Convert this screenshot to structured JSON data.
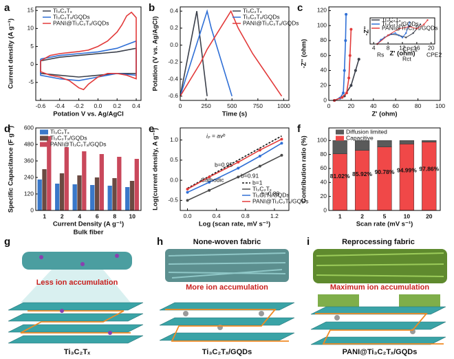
{
  "chart_data": [
    {
      "type": "line",
      "panel": "a",
      "xlabel": "Potation V vs. Ag/AgCl",
      "ylabel": "Current density (A g⁻¹)",
      "xlim": [
        -0.65,
        0.45
      ],
      "xticks": [
        -0.6,
        -0.4,
        -0.2,
        {
          "value": 0,
          "label": "0.0"
        },
        0.2,
        0.4
      ],
      "ylim": [
        -10,
        16
      ],
      "yticks": [
        -5,
        0,
        5,
        10,
        15
      ],
      "series": [
        {
          "name": "Ti₃C₂Tₓ",
          "color": "#3a3f4a",
          "x": [
            -0.6,
            -0.4,
            -0.2,
            0,
            0.2,
            0.4,
            0.4,
            0.2,
            0,
            -0.2,
            -0.4,
            -0.6,
            -0.6
          ],
          "values": [
            1,
            2,
            2.5,
            3,
            3.5,
            4.5,
            -2.5,
            -2.5,
            -3,
            -3.5,
            -3,
            -2.5,
            1
          ]
        },
        {
          "name": "Ti₃C₂Tₓ/GQDs",
          "color": "#2f6fd6",
          "x": [
            -0.6,
            -0.4,
            -0.2,
            0,
            0.2,
            0.3,
            0.4,
            0.4,
            0.2,
            0,
            -0.2,
            -0.4,
            -0.6,
            -0.6
          ],
          "values": [
            1.5,
            2.5,
            3,
            3.5,
            4.5,
            5.5,
            6.5,
            -3,
            -2.5,
            -3.5,
            -4.5,
            -4,
            -3,
            1.5
          ]
        },
        {
          "name": "PANI@Ti₃C₂Tₓ/GQDs",
          "color": "#e23a3a",
          "x": [
            -0.6,
            -0.5,
            -0.4,
            -0.3,
            -0.2,
            -0.1,
            0,
            0.1,
            0.2,
            0.25,
            0.3,
            0.35,
            0.4,
            0.4,
            0.35,
            0.3,
            0.2,
            0.1,
            0,
            -0.1,
            -0.15,
            -0.2,
            -0.3,
            -0.4,
            -0.5,
            -0.6,
            -0.6
          ],
          "values": [
            1,
            2.5,
            3,
            3.3,
            3.6,
            4,
            5,
            6.5,
            9,
            11,
            13.5,
            14.5,
            13,
            -4,
            -3.5,
            -3,
            -2.5,
            -2.5,
            -3.5,
            -5.5,
            -7,
            -6.5,
            -4.5,
            -3.5,
            -3,
            -2,
            1
          ]
        }
      ]
    },
    {
      "type": "line",
      "panel": "b",
      "xlabel": "Time (s)",
      "ylabel": "Potation (V vs. Ag/AgCl)",
      "xlim": [
        0,
        1050
      ],
      "xticks": [
        0,
        250,
        500,
        750,
        1000
      ],
      "ylim": [
        -0.65,
        0.45
      ],
      "yticks": [
        -0.6,
        -0.4,
        -0.2,
        {
          "value": 0,
          "label": "0.0"
        },
        0.2,
        0.4
      ],
      "series": [
        {
          "name": "Ti₃C₂Tₓ",
          "color": "#3a3f4a",
          "x": [
            0,
            160,
            260
          ],
          "values": [
            -0.6,
            0.4,
            -0.6
          ]
        },
        {
          "name": "Ti₃C₂Tₓ/GQDs",
          "color": "#2f6fd6",
          "x": [
            0,
            260,
            300,
            500
          ],
          "values": [
            -0.6,
            0.4,
            0.2,
            -0.6
          ]
        },
        {
          "name": "PANI@Ti₃C₂Tₓ/GQDs",
          "color": "#e23a3a",
          "x": [
            0,
            200,
            260,
            490,
            560,
            700,
            980
          ],
          "values": [
            -0.6,
            -0.2,
            -0.05,
            0.4,
            0.2,
            -0.1,
            -0.6
          ]
        }
      ]
    },
    {
      "type": "line",
      "panel": "c",
      "xlabel": "Z' (ohm)",
      "ylabel": "-Z'' (ohm)",
      "xlim": [
        0,
        100
      ],
      "xticks": [
        0,
        20,
        40,
        60,
        80,
        100
      ],
      "ylim": [
        0,
        125
      ],
      "yticks": [
        0,
        20,
        40,
        60,
        80,
        100,
        120
      ],
      "series": [
        {
          "color": "#3a3f4a",
          "marker": "circle",
          "x": [
            5,
            14,
            20,
            24,
            27
          ],
          "values": [
            0,
            6,
            20,
            40,
            55
          ]
        },
        {
          "color": "#2f6fd6",
          "marker": "circle",
          "x": [
            5,
            10,
            13,
            14,
            15,
            15.5
          ],
          "values": [
            0,
            3,
            10,
            40,
            80,
            115
          ]
        },
        {
          "color": "#e23a3a",
          "marker": "circle",
          "x": [
            5,
            12,
            16,
            18,
            19,
            20
          ],
          "values": [
            0,
            4,
            10,
            30,
            60,
            95
          ]
        }
      ]
    },
    {
      "type": "bar",
      "panel": "d",
      "xlabel": "Current Density (A g⁻¹)",
      "ylabel": "Specific Capacitance (F g⁻¹)",
      "note": "Bulk fiber",
      "categories": [
        "1",
        "2",
        "4",
        "6",
        "8",
        "10"
      ],
      "ylim": [
        0,
        600
      ],
      "yticks": [
        0,
        120,
        240,
        360,
        480,
        600
      ],
      "series": [
        {
          "name": "Ti₃C₂Tₓ",
          "color": "#3a78c9",
          "values": [
            225,
            195,
            190,
            185,
            180,
            170
          ]
        },
        {
          "name": "Ti₃C₂Tₓ/GQDs",
          "color": "#6b4a42",
          "values": [
            300,
            270,
            255,
            240,
            235,
            215
          ]
        },
        {
          "name": "PANI@Ti₃C₂Tₓ/GQDs",
          "color": "#c9485b",
          "values": [
            540,
            460,
            430,
            410,
            390,
            375
          ]
        }
      ]
    },
    {
      "type": "line",
      "panel": "e",
      "xlabel": "Log (scan rate, mV s⁻¹)",
      "ylabel": "Log(current density, A g⁻¹)",
      "xlim": [
        -0.1,
        1.4
      ],
      "xticks": [
        {
          "value": 0,
          "label": "0.0"
        },
        0.4,
        0.8,
        1.2
      ],
      "ylim": [
        -0.75,
        1.3
      ],
      "yticks": [
        -0.5,
        {
          "value": 0,
          "label": "0.0"
        },
        0.5,
        {
          "value": 1,
          "label": "1.0"
        }
      ],
      "annotations": [
        "iₚ = avᵇ",
        "b=0.95",
        "Cathodic",
        "b=0.91",
        "b=0.88"
      ],
      "series": [
        {
          "name": "b=1",
          "color": "#111111",
          "dashed": true,
          "x": [
            0,
            1.3
          ],
          "values": [
            -0.2,
            1.1
          ]
        },
        {
          "name": "Ti₃C₂Tₓ",
          "color": "#4a4a4a",
          "marker": "circle",
          "x": [
            0,
            0.3,
            0.7,
            1.0,
            1.3
          ],
          "values": [
            -0.5,
            -0.25,
            0.08,
            0.35,
            0.62
          ]
        },
        {
          "name": "Ti₃C₂Tₓ/GQDs",
          "color": "#2f6fd6",
          "marker": "circle",
          "x": [
            0,
            0.3,
            0.7,
            1.0,
            1.3
          ],
          "values": [
            -0.3,
            -0.05,
            0.3,
            0.6,
            0.92
          ]
        },
        {
          "name": "PANI@Ti₃C₂Tₓ/GQDs",
          "color": "#e23a3a",
          "marker": "circle",
          "x": [
            0,
            0.3,
            0.7,
            1.0,
            1.3
          ],
          "values": [
            -0.22,
            0.08,
            0.45,
            0.75,
            1.02
          ]
        }
      ]
    },
    {
      "type": "stacked",
      "panel": "f",
      "xlabel": "Scan rate (mV s⁻¹)",
      "ylabel": "Contribution ratio (%)",
      "categories": [
        "1",
        "2",
        "5",
        "10",
        "20"
      ],
      "ylim": [
        0,
        118
      ],
      "yticks": [
        0,
        20,
        40,
        60,
        80,
        100
      ],
      "series": [
        {
          "name": "Diffusion limited",
          "color": "#5a5a5a",
          "values": [
            18.98,
            14.08,
            9.22,
            5.01,
            2.14
          ]
        },
        {
          "name": "Capacitive",
          "color": "#f04848",
          "values": [
            81.02,
            85.92,
            90.78,
            94.99,
            97.86
          ],
          "value_labels": [
            "81.02%",
            "85.92%",
            "90.78%",
            "94.99%",
            "97.86%"
          ]
        }
      ]
    },
    {
      "type": "line",
      "xlabel": "Z' (ohm)",
      "ylabel": "-Z''",
      "xlim": [
        3,
        21
      ],
      "xticks": [
        4,
        8,
        12,
        16,
        20
      ],
      "ylim": [
        0,
        12
      ],
      "annotations": [
        "Rs",
        "CPE1",
        "Rct",
        "CPE2"
      ],
      "series": [
        {
          "name": "Ti₃C₂Tₓ",
          "color": "#3a3f4a",
          "marker": "circle",
          "x": [
            5,
            7,
            9,
            11,
            13,
            15,
            17
          ],
          "values": [
            0,
            3,
            4.5,
            4,
            3,
            5,
            9
          ]
        },
        {
          "name": "Ti₃C₂Tₓ/GQDs",
          "color": "#2f6fd6",
          "marker": "circle",
          "x": [
            5,
            6,
            8,
            10,
            12,
            13,
            14
          ],
          "values": [
            0,
            2,
            4,
            5,
            3,
            5,
            10
          ]
        },
        {
          "name": "PANI@Ti₃C₂Tₓ/GQDs",
          "color": "#e23a3a",
          "marker": "circle",
          "x": [
            5,
            8,
            11,
            14,
            16,
            18,
            19
          ],
          "values": [
            0,
            4,
            7,
            8,
            7,
            9,
            11
          ]
        }
      ]
    }
  ],
  "schematics": [
    {
      "letter": "g",
      "caption": "Less ion accumulation",
      "material": "Ti₃C₂Tₓ"
    },
    {
      "letter": "h",
      "title": "None-woven fabric",
      "caption": "More ion accumulation",
      "material": "Ti₃C₂Tₓ/GQDs"
    },
    {
      "letter": "i",
      "title": "Reprocessing fabric",
      "caption": "Maximum ion accumulation",
      "material": "PANI@Ti₃C₂Tₓ/GQDs"
    }
  ]
}
